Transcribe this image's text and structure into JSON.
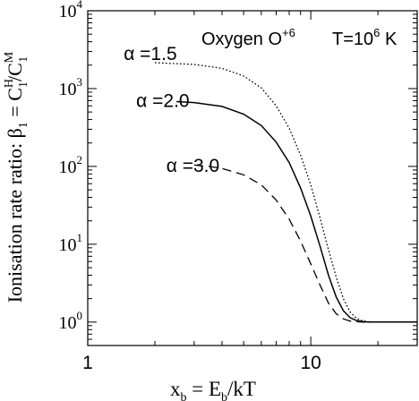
{
  "chart_data": {
    "type": "line",
    "xscale": "log",
    "yscale": "log",
    "xlim": [
      1,
      30
    ],
    "ylim": [
      0.5,
      10000
    ],
    "grid": false,
    "x_ticks": [
      {
        "value": 1,
        "label": "1"
      },
      {
        "value": 10,
        "label": "10"
      }
    ],
    "y_ticks": [
      {
        "value": 1,
        "base": "10",
        "exp": "0"
      },
      {
        "value": 10,
        "base": "10",
        "exp": "1"
      },
      {
        "value": 100,
        "base": "10",
        "exp": "2"
      },
      {
        "value": 1000,
        "base": "10",
        "exp": "3"
      },
      {
        "value": 10000,
        "base": "10",
        "exp": "4"
      }
    ],
    "xlabel": {
      "pre": "x",
      "sub1": "b",
      "mid": " = E",
      "sub2": "b",
      "post": "/kT"
    },
    "ylabel": {
      "text": "Ionisation rate ratio:  β",
      "sub1": "1",
      "mid": " = C",
      "sup2": "H",
      "sub2": "1",
      "mid2": "/C",
      "sup3": "M",
      "sub3": "1"
    },
    "annotations": {
      "species": {
        "text": "Oxygen O",
        "sup": "+6"
      },
      "temperature": {
        "text": "T=10",
        "sup": "6",
        "post": " K"
      }
    },
    "series": [
      {
        "name": "α  =1.5",
        "dash": "dotted",
        "label_at": {
          "x": 1.45,
          "y": 2800
        },
        "points": [
          [
            2.0,
            2150
          ],
          [
            3.0,
            2040
          ],
          [
            4.0,
            1820
          ],
          [
            5.0,
            1450
          ],
          [
            6.0,
            1020
          ],
          [
            7.0,
            600
          ],
          [
            8.0,
            310
          ],
          [
            9.0,
            140
          ],
          [
            10.0,
            58
          ],
          [
            11.0,
            22
          ],
          [
            12.0,
            8.5
          ],
          [
            13.0,
            3.8
          ],
          [
            14.0,
            2.0
          ],
          [
            15.0,
            1.35
          ],
          [
            16.0,
            1.12
          ],
          [
            17.0,
            1.04
          ],
          [
            18.0,
            1.01
          ],
          [
            20.0,
            1.0
          ],
          [
            30.0,
            1.0
          ]
        ]
      },
      {
        "name": "α  =2.0",
        "dash": "solid",
        "label_at": {
          "x": 1.65,
          "y": 700
        },
        "points": [
          [
            2.5,
            680
          ],
          [
            3.0,
            660
          ],
          [
            4.0,
            590
          ],
          [
            5.0,
            470
          ],
          [
            6.0,
            335
          ],
          [
            7.0,
            205
          ],
          [
            8.0,
            112
          ],
          [
            9.0,
            53
          ],
          [
            10.0,
            23
          ],
          [
            11.0,
            9.5
          ],
          [
            12.0,
            4.0
          ],
          [
            13.0,
            2.1
          ],
          [
            14.0,
            1.4
          ],
          [
            15.0,
            1.14
          ],
          [
            16.0,
            1.05
          ],
          [
            17.0,
            1.02
          ],
          [
            18.0,
            1.0
          ],
          [
            30.0,
            1.0
          ]
        ]
      },
      {
        "name": "α  =3.0",
        "dash": "dashed",
        "label_at": {
          "x": 2.25,
          "y": 102
        },
        "points": [
          [
            3.0,
            104
          ],
          [
            3.5,
            100
          ],
          [
            4.0,
            94
          ],
          [
            5.0,
            78
          ],
          [
            6.0,
            58
          ],
          [
            7.0,
            37
          ],
          [
            8.0,
            21
          ],
          [
            9.0,
            11
          ],
          [
            10.0,
            5.6
          ],
          [
            11.0,
            3.0
          ],
          [
            12.0,
            1.75
          ],
          [
            13.0,
            1.28
          ],
          [
            14.0,
            1.1
          ],
          [
            15.0,
            1.03
          ],
          [
            16.0,
            1.01
          ],
          [
            17.0,
            1.0
          ],
          [
            30.0,
            1.0
          ]
        ]
      }
    ]
  }
}
